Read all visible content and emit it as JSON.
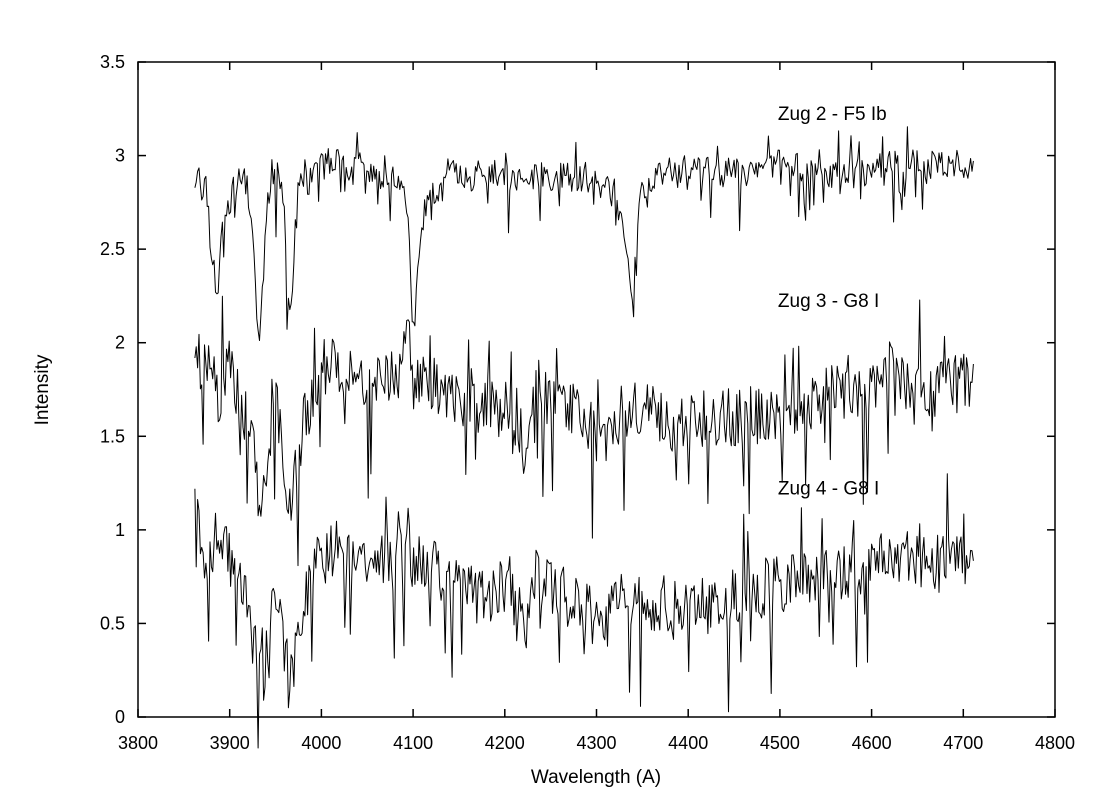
{
  "chart_data": {
    "type": "line",
    "title": "",
    "xlabel": "Wavelength (A)",
    "ylabel": "Intensity",
    "xlim": [
      3800,
      4800
    ],
    "ylim": [
      0,
      3.5
    ],
    "xticks": [
      "3800",
      "3900",
      "4000",
      "4100",
      "4200",
      "4300",
      "4400",
      "4500",
      "4600",
      "4700",
      "4800"
    ],
    "yticks": [
      "0",
      "0.5",
      "1",
      "1.5",
      "2",
      "2.5",
      "3",
      "3.5"
    ],
    "grid": false,
    "legend": "none",
    "line_color": "#000000",
    "series": [
      {
        "name": "Zug 2 - F5 Ib",
        "x_range": [
          3862,
          4712
        ],
        "continuum": 2.9,
        "noise": 0.08,
        "seed": 11,
        "label_position": [
          4500,
          3.19
        ],
        "points": [
          [
            3862,
            2.87
          ],
          [
            3866,
            3.02
          ],
          [
            3870,
            2.7
          ],
          [
            3874,
            2.92
          ],
          [
            3878,
            2.6
          ],
          [
            3882,
            2.45
          ],
          [
            3887,
            2.2
          ],
          [
            3892,
            2.68
          ],
          [
            3898,
            2.74
          ],
          [
            3905,
            2.82
          ],
          [
            3912,
            2.88
          ],
          [
            3920,
            2.85
          ],
          [
            3926,
            2.55
          ],
          [
            3930,
            2.1
          ],
          [
            3933,
            2.04
          ],
          [
            3936,
            2.3
          ],
          [
            3940,
            2.72
          ],
          [
            3946,
            2.9
          ],
          [
            3952,
            2.92
          ],
          [
            3958,
            2.8
          ],
          [
            3962,
            2.4
          ],
          [
            3966,
            2.07
          ],
          [
            3970,
            2.5
          ],
          [
            3976,
            2.88
          ],
          [
            3990,
            2.85
          ],
          [
            4000,
            2.96
          ],
          [
            4010,
            2.92
          ],
          [
            4022,
            3.05
          ],
          [
            4030,
            2.9
          ],
          [
            4045,
            2.95
          ],
          [
            4060,
            2.85
          ],
          [
            4075,
            2.92
          ],
          [
            4090,
            2.8
          ],
          [
            4095,
            2.6
          ],
          [
            4100,
            2.2
          ],
          [
            4102,
            2.02
          ],
          [
            4105,
            2.4
          ],
          [
            4112,
            2.7
          ],
          [
            4125,
            2.8
          ],
          [
            4140,
            2.92
          ],
          [
            4160,
            2.88
          ],
          [
            4180,
            2.92
          ],
          [
            4210,
            2.85
          ],
          [
            4240,
            2.9
          ],
          [
            4270,
            2.88
          ],
          [
            4300,
            2.85
          ],
          [
            4320,
            2.8
          ],
          [
            4330,
            2.6
          ],
          [
            4336,
            2.35
          ],
          [
            4339,
            2.25
          ],
          [
            4343,
            2.55
          ],
          [
            4350,
            2.82
          ],
          [
            4380,
            2.92
          ],
          [
            4420,
            2.92
          ],
          [
            4460,
            2.9
          ],
          [
            4500,
            2.98
          ],
          [
            4540,
            2.9
          ],
          [
            4580,
            2.9
          ],
          [
            4620,
            2.95
          ],
          [
            4660,
            2.95
          ],
          [
            4712,
            2.96
          ]
        ]
      },
      {
        "name": "Zug 3 - G8 I",
        "x_range": [
          3862,
          4712
        ],
        "continuum": 1.8,
        "noise": 0.16,
        "seed": 23,
        "label_position": [
          4500,
          2.19
        ],
        "points": [
          [
            3862,
            2.0
          ],
          [
            3870,
            1.85
          ],
          [
            3880,
            2.0
          ],
          [
            3888,
            1.7
          ],
          [
            3896,
            1.9
          ],
          [
            3905,
            1.8
          ],
          [
            3915,
            1.65
          ],
          [
            3925,
            1.45
          ],
          [
            3932,
            1.18
          ],
          [
            3937,
            1.25
          ],
          [
            3945,
            1.55
          ],
          [
            3952,
            1.65
          ],
          [
            3958,
            1.45
          ],
          [
            3964,
            1.18
          ],
          [
            3968,
            1.2
          ],
          [
            3975,
            1.45
          ],
          [
            3985,
            1.65
          ],
          [
            4000,
            1.85
          ],
          [
            4020,
            1.9
          ],
          [
            4040,
            1.8
          ],
          [
            4060,
            1.85
          ],
          [
            4080,
            1.8
          ],
          [
            4095,
            2.0
          ],
          [
            4100,
            1.8
          ],
          [
            4110,
            1.85
          ],
          [
            4140,
            1.7
          ],
          [
            4170,
            1.65
          ],
          [
            4200,
            1.65
          ],
          [
            4215,
            1.6
          ],
          [
            4222,
            1.4
          ],
          [
            4230,
            1.8
          ],
          [
            4260,
            1.65
          ],
          [
            4290,
            1.6
          ],
          [
            4305,
            1.4
          ],
          [
            4320,
            1.6
          ],
          [
            4350,
            1.65
          ],
          [
            4380,
            1.55
          ],
          [
            4420,
            1.6
          ],
          [
            4460,
            1.6
          ],
          [
            4500,
            1.65
          ],
          [
            4540,
            1.7
          ],
          [
            4580,
            1.75
          ],
          [
            4600,
            1.75
          ],
          [
            4620,
            1.85
          ],
          [
            4660,
            1.75
          ],
          [
            4712,
            1.8
          ]
        ]
      },
      {
        "name": "Zug 4 - G8 I",
        "x_range": [
          3862,
          4712
        ],
        "continuum": 0.85,
        "noise": 0.16,
        "seed": 37,
        "label_position": [
          4500,
          1.19
        ],
        "points": [
          [
            3862,
            1.3
          ],
          [
            3868,
            1.0
          ],
          [
            3875,
            0.75
          ],
          [
            3882,
            0.95
          ],
          [
            3890,
            1.0
          ],
          [
            3898,
            0.85
          ],
          [
            3908,
            0.8
          ],
          [
            3918,
            0.6
          ],
          [
            3926,
            0.4
          ],
          [
            3932,
            0.2
          ],
          [
            3937,
            0.25
          ],
          [
            3945,
            0.55
          ],
          [
            3952,
            0.7
          ],
          [
            3958,
            0.45
          ],
          [
            3964,
            0.2
          ],
          [
            3968,
            0.18
          ],
          [
            3975,
            0.5
          ],
          [
            3985,
            0.7
          ],
          [
            4000,
            0.85
          ],
          [
            4020,
            0.9
          ],
          [
            4040,
            0.8
          ],
          [
            4060,
            0.85
          ],
          [
            4080,
            0.8
          ],
          [
            4095,
            1.0
          ],
          [
            4100,
            0.8
          ],
          [
            4110,
            0.85
          ],
          [
            4140,
            0.7
          ],
          [
            4170,
            0.65
          ],
          [
            4200,
            0.68
          ],
          [
            4215,
            0.6
          ],
          [
            4222,
            0.4
          ],
          [
            4230,
            0.8
          ],
          [
            4260,
            0.65
          ],
          [
            4290,
            0.6
          ],
          [
            4305,
            0.4
          ],
          [
            4320,
            0.6
          ],
          [
            4350,
            0.65
          ],
          [
            4380,
            0.55
          ],
          [
            4420,
            0.6
          ],
          [
            4460,
            0.65
          ],
          [
            4500,
            0.72
          ],
          [
            4540,
            0.75
          ],
          [
            4580,
            0.78
          ],
          [
            4600,
            0.8
          ],
          [
            4620,
            0.9
          ],
          [
            4660,
            0.8
          ],
          [
            4712,
            0.85
          ]
        ]
      }
    ]
  }
}
